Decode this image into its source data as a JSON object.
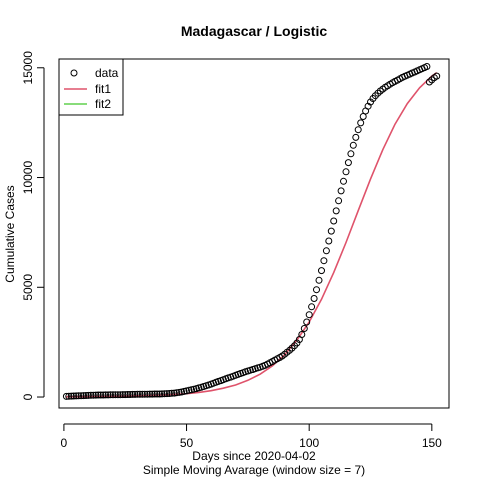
{
  "chart_data": {
    "type": "scatter",
    "title": "Madagascar / Logistic",
    "xlabel": "Days since 2020-04-02",
    "xlabel2": "Simple Moving Avarage (window size = 7)",
    "ylabel": "Cumulative Cases",
    "xlim": [
      -2,
      157
    ],
    "ylim": [
      -500,
      15400
    ],
    "xticks": [
      0,
      50,
      100,
      150
    ],
    "yticks": [
      0,
      5000,
      10000,
      15000
    ],
    "grid": false,
    "legend": {
      "position": "top-left",
      "entries": [
        {
          "label": "data",
          "type": "point",
          "color": "#000000"
        },
        {
          "label": "fit1",
          "type": "line",
          "color": "#DF536B"
        },
        {
          "label": "fit2",
          "type": "line",
          "color": "#61D04F"
        }
      ]
    },
    "series": [
      {
        "name": "data",
        "kind": "points",
        "color": "#000000",
        "x": [
          1,
          2,
          3,
          4,
          5,
          6,
          7,
          8,
          9,
          10,
          11,
          12,
          13,
          14,
          15,
          16,
          17,
          18,
          19,
          20,
          21,
          22,
          23,
          24,
          25,
          26,
          27,
          28,
          29,
          30,
          31,
          32,
          33,
          34,
          35,
          36,
          37,
          38,
          39,
          40,
          41,
          42,
          43,
          44,
          45,
          46,
          47,
          48,
          49,
          50,
          51,
          52,
          53,
          54,
          55,
          56,
          57,
          58,
          59,
          60,
          61,
          62,
          63,
          64,
          65,
          66,
          67,
          68,
          69,
          70,
          71,
          72,
          73,
          74,
          75,
          76,
          77,
          78,
          79,
          80,
          81,
          82,
          83,
          84,
          85,
          86,
          87,
          88,
          89,
          90,
          91,
          92,
          93,
          94,
          95,
          96,
          97,
          98,
          99,
          100,
          101,
          102,
          103,
          104,
          105,
          106,
          107,
          108,
          109,
          110,
          111,
          112,
          113,
          114,
          115,
          116,
          117,
          118,
          119,
          120,
          121,
          122,
          123,
          124,
          125,
          126,
          127,
          128,
          129,
          130,
          131,
          132,
          133,
          134,
          135,
          136,
          137,
          138,
          139,
          140,
          141,
          142,
          143,
          144,
          145,
          146,
          147,
          148,
          149,
          150,
          151,
          152
        ],
        "y": [
          30,
          35,
          40,
          45,
          50,
          55,
          60,
          65,
          70,
          75,
          80,
          85,
          88,
          90,
          92,
          94,
          96,
          98,
          100,
          102,
          104,
          106,
          108,
          110,
          112,
          114,
          116,
          118,
          120,
          122,
          124,
          126,
          128,
          130,
          132,
          134,
          136,
          138,
          140,
          144,
          150,
          155,
          160,
          170,
          180,
          195,
          210,
          230,
          255,
          280,
          305,
          330,
          355,
          385,
          415,
          445,
          480,
          515,
          550,
          590,
          630,
          670,
          710,
          750,
          790,
          830,
          870,
          910,
          950,
          990,
          1030,
          1070,
          1110,
          1150,
          1185,
          1220,
          1255,
          1290,
          1325,
          1360,
          1400,
          1440,
          1500,
          1560,
          1620,
          1680,
          1740,
          1800,
          1870,
          1950,
          2040,
          2130,
          2230,
          2340,
          2460,
          2620,
          2850,
          3120,
          3420,
          3750,
          4110,
          4490,
          4890,
          5320,
          5760,
          6210,
          6660,
          7110,
          7560,
          8020,
          8480,
          8940,
          9390,
          9830,
          10260,
          10680,
          11080,
          11470,
          11830,
          12180,
          12490,
          12780,
          13030,
          13250,
          13440,
          13600,
          13730,
          13840,
          13940,
          14030,
          14110,
          14180,
          14250,
          14320,
          14380,
          14440,
          14500,
          14560,
          14610,
          14660,
          14710,
          14760,
          14810,
          14860,
          14910,
          14960,
          15010,
          15060,
          14350,
          14450,
          14550,
          14620
        ]
      },
      {
        "name": "fit1",
        "kind": "line",
        "color": "#DF536B",
        "x": [
          1,
          10,
          20,
          30,
          40,
          50,
          55,
          60,
          65,
          70,
          75,
          80,
          85,
          90,
          95,
          100,
          105,
          110,
          115,
          120,
          125,
          130,
          135,
          140,
          145,
          150,
          152
        ],
        "y": [
          10,
          20,
          35,
          55,
          90,
          150,
          210,
          290,
          400,
          550,
          760,
          1040,
          1420,
          1930,
          2590,
          3420,
          4450,
          5670,
          7040,
          8490,
          9930,
          11270,
          12430,
          13370,
          14090,
          14620,
          14780
        ]
      },
      {
        "name": "fit2",
        "kind": "line",
        "color": "#61D04F",
        "x": [],
        "y": []
      }
    ]
  }
}
